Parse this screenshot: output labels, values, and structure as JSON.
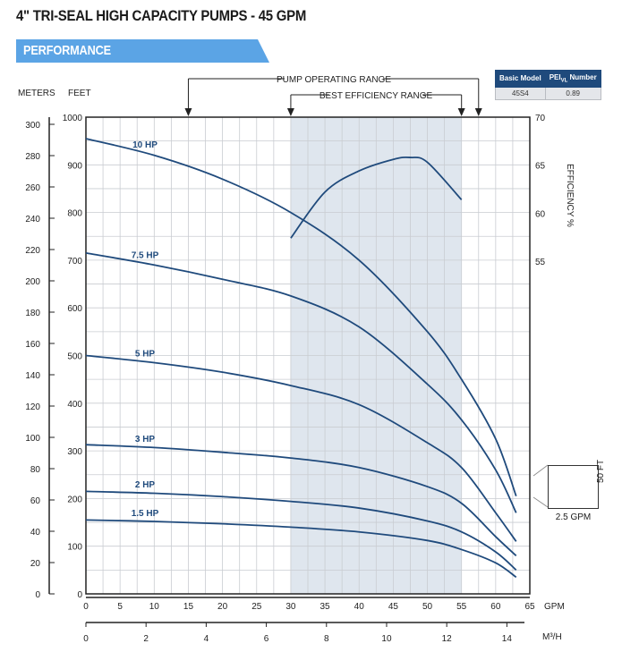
{
  "title": "4\" TRI-SEAL HIGH CAPACITY PUMPS - 45 GPM",
  "section": "PERFORMANCE",
  "model_table": {
    "headers": [
      "Basic Model",
      "PEI",
      "VL",
      "Number"
    ],
    "row": [
      "45S4",
      "0.89"
    ]
  },
  "colors": {
    "curve": "#1f4a7c",
    "tab": "#5ba4e5",
    "shade": "#dfe6ee",
    "header": "#1f4a7c"
  },
  "scale_note": {
    "x": "2.5 GPM",
    "y": "50 FT"
  },
  "chart_data": {
    "type": "line",
    "x": {
      "label": "GPM",
      "range": [
        0,
        65
      ],
      "ticks": [
        0,
        5,
        10,
        15,
        20,
        25,
        30,
        35,
        40,
        45,
        50,
        55,
        60,
        65
      ]
    },
    "x2": {
      "label": "M³/H",
      "ticks": [
        0,
        2,
        4,
        6,
        8,
        10,
        12,
        14
      ]
    },
    "y_feet": {
      "label": "FEET",
      "range": [
        0,
        1000
      ],
      "ticks": [
        0,
        100,
        200,
        300,
        400,
        500,
        600,
        700,
        800,
        900,
        1000
      ]
    },
    "y_meters": {
      "label": "METERS",
      "ticks": [
        0,
        20,
        40,
        60,
        80,
        100,
        120,
        140,
        160,
        180,
        200,
        220,
        240,
        260,
        280,
        300
      ]
    },
    "y_eff": {
      "label": "EFFICIENCY %",
      "ticks": [
        55,
        60,
        65,
        70
      ]
    },
    "pump_operating_range": {
      "label": "PUMP OPERATING RANGE",
      "range": [
        15,
        57.5
      ]
    },
    "best_efficiency_range": {
      "label": "BEST EFFICIENCY RANGE",
      "range": [
        30,
        55
      ]
    },
    "series": [
      {
        "name": "10 HP",
        "x": [
          0,
          10,
          20,
          30,
          40,
          50,
          55,
          60,
          63
        ],
        "y": [
          955,
          920,
          870,
          800,
          700,
          550,
          450,
          325,
          205
        ]
      },
      {
        "name": "7.5 HP",
        "x": [
          0,
          10,
          20,
          30,
          40,
          50,
          55,
          60,
          63
        ],
        "y": [
          715,
          690,
          660,
          625,
          560,
          440,
          365,
          260,
          170
        ]
      },
      {
        "name": "5 HP",
        "x": [
          0,
          10,
          20,
          30,
          40,
          50,
          55,
          60,
          63
        ],
        "y": [
          500,
          485,
          465,
          437,
          397,
          317,
          265,
          170,
          110
        ]
      },
      {
        "name": "3 HP",
        "x": [
          0,
          10,
          20,
          30,
          40,
          50,
          55,
          60,
          63
        ],
        "y": [
          313,
          307,
          297,
          285,
          265,
          225,
          190,
          120,
          80
        ]
      },
      {
        "name": "2 HP",
        "x": [
          0,
          10,
          20,
          30,
          40,
          50,
          55,
          60,
          63
        ],
        "y": [
          215,
          211,
          204,
          194,
          180,
          153,
          130,
          88,
          50
        ]
      },
      {
        "name": "1.5 HP",
        "x": [
          0,
          10,
          20,
          30,
          40,
          50,
          55,
          60,
          63
        ],
        "y": [
          155,
          152,
          147,
          140,
          130,
          112,
          93,
          65,
          35
        ]
      }
    ],
    "efficiency": {
      "name": "Efficiency",
      "x": [
        30,
        35,
        40,
        45,
        47.5,
        50,
        55
      ],
      "y": [
        57.4,
        62.2,
        64.4,
        65.6,
        65.8,
        65.3,
        61.4
      ]
    }
  }
}
